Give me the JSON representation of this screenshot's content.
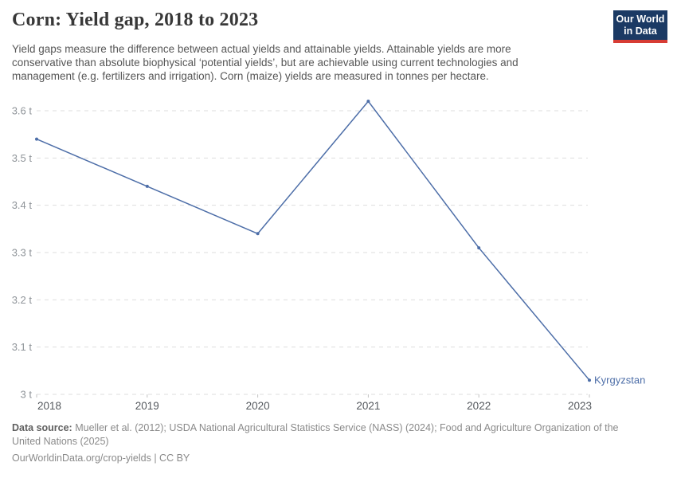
{
  "header": {
    "title": "Corn: Yield gap, 2018 to 2023",
    "subtitle_lines": [
      "Yield gaps measure the difference between actual yields and attainable yields. Attainable yields are more",
      "conservative than absolute biophysical ‘potential yields’, but are achievable using current technologies and",
      "management (e.g. fertilizers and irrigation). Corn (maize) yields are measured in tonnes per hectare."
    ],
    "logo": {
      "line1": "Our World",
      "line2": "in Data"
    }
  },
  "chart_data": {
    "type": "line",
    "title": "Corn: Yield gap, 2018 to 2023",
    "x": [
      2018,
      2019,
      2020,
      2021,
      2022,
      2023
    ],
    "xtick_labels": [
      "2018",
      "2019",
      "2020",
      "2021",
      "2022",
      "2023"
    ],
    "series": [
      {
        "name": "Kyrgyzstan",
        "values": [
          3.54,
          3.44,
          3.34,
          3.62,
          3.31,
          3.03
        ]
      }
    ],
    "unit": "tonnes per hectare",
    "ylim": [
      3.0,
      3.6
    ],
    "ytick_step": 0.1,
    "ytick_labels": [
      "3 t",
      "3.1 t",
      "3.2 t",
      "3.3 t",
      "3.4 t",
      "3.5 t",
      "3.6 t"
    ],
    "grid": "horizontal-dashed",
    "legend_position": "end-of-line-label",
    "end_label": "Kyrgyzstan"
  },
  "colors": {
    "line": "#4d6ea8",
    "entity_label": "#4d6ea8",
    "grid": "#dedede",
    "tick_mark": "#c2c2c2",
    "ytick_text": "#8f9499",
    "xtick_text": "#55595e",
    "logo_bg": "#1b3a64",
    "logo_accent": "#d73c34"
  },
  "footer": {
    "data_source_label": "Data source:",
    "data_source_text": "Mueller et al. (2012); USDA National Agricultural Statistics Service (NASS) (2024); Food and Agriculture Organization of the United Nations (2025)",
    "license_url": "OurWorldinData.org/crop-yields",
    "license_suffix": " | CC BY"
  }
}
